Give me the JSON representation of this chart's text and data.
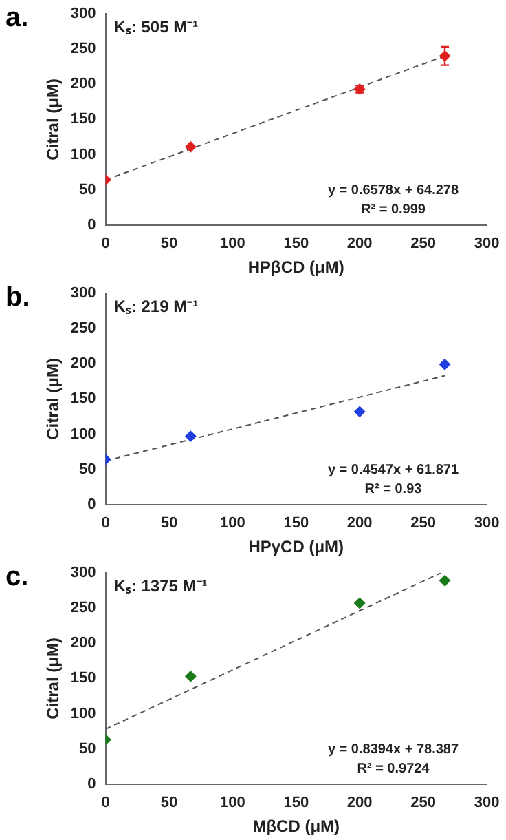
{
  "chart_data": [
    {
      "type": "scatter",
      "title": "a.",
      "xlabel": "HPβCD (μM)",
      "ylabel": "Citral (μM)",
      "xlim": [
        0,
        300
      ],
      "xticks": [
        0,
        50,
        100,
        150,
        200,
        250,
        300
      ],
      "ylim": [
        0,
        300
      ],
      "yticks": [
        0,
        50,
        100,
        150,
        200,
        250,
        300
      ],
      "grid": false,
      "legend": false,
      "marker": "diamond",
      "annotations": [
        "Kₛ: 505 M⁻¹",
        "y = 0.6578x + 64.278",
        "R² = 0.999"
      ],
      "series": [
        {
          "color": "#e02020",
          "x": [
            0,
            67,
            200,
            267
          ],
          "values": [
            64,
            111,
            193,
            240
          ],
          "errors": [
            null,
            null,
            5,
            13
          ]
        },
        {
          "type": "line",
          "color": "#555555",
          "x": [
            0,
            267
          ],
          "values": [
            64,
            240
          ],
          "line_style": "dashed",
          "marker": "none"
        }
      ]
    },
    {
      "type": "scatter",
      "title": "b.",
      "xlabel": "HPγCD (μM)",
      "ylabel": "Citral (μM)",
      "xlim": [
        0,
        300
      ],
      "xticks": [
        0,
        50,
        100,
        150,
        200,
        250,
        300
      ],
      "ylim": [
        0,
        300
      ],
      "yticks": [
        0,
        50,
        100,
        150,
        200,
        250,
        300
      ],
      "grid": false,
      "legend": false,
      "marker": "diamond",
      "annotations": [
        "Kₛ: 219 M⁻¹",
        "y = 0.4547x + 61.871",
        "R² = 0.93"
      ],
      "series": [
        {
          "color": "#1f3fe0",
          "x": [
            0,
            67,
            200,
            267
          ],
          "values": [
            64,
            97,
            132,
            199
          ]
        },
        {
          "type": "line",
          "color": "#555555",
          "x": [
            0,
            267
          ],
          "values": [
            62,
            183
          ],
          "line_style": "dashed",
          "marker": "none"
        }
      ]
    },
    {
      "type": "scatter",
      "title": "c.",
      "xlabel": "MβCD (μM)",
      "ylabel": "Citral (μM)",
      "xlim": [
        0,
        300
      ],
      "xticks": [
        0,
        50,
        100,
        150,
        200,
        250,
        300
      ],
      "ylim": [
        0,
        300
      ],
      "yticks": [
        0,
        50,
        100,
        150,
        200,
        250,
        300
      ],
      "grid": false,
      "legend": false,
      "marker": "diamond",
      "annotations": [
        "Kₛ: 1375 M⁻¹",
        "y = 0.8394x + 78.387",
        "R² = 0.9724"
      ],
      "series": [
        {
          "color": "#1a7a1a",
          "x": [
            0,
            67,
            200,
            267
          ],
          "values": [
            63,
            153,
            257,
            289
          ]
        },
        {
          "type": "line",
          "color": "#555555",
          "x": [
            0,
            264
          ],
          "values": [
            78,
            300
          ],
          "line_style": "dashed",
          "marker": "none"
        }
      ]
    }
  ]
}
